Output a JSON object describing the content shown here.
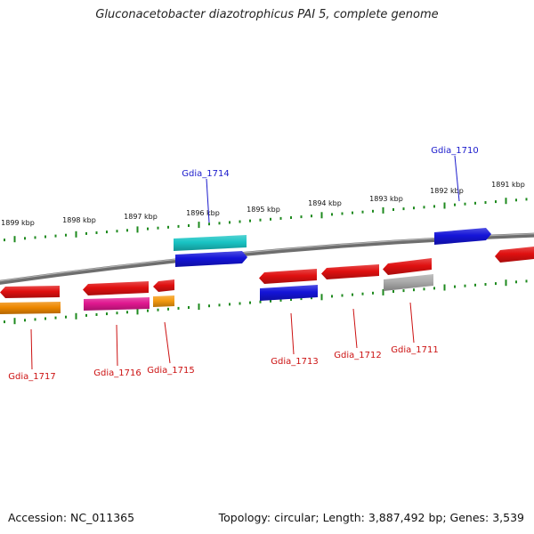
{
  "title": "Gluconacetobacter diazotrophicus PAI 5, complete genome",
  "footer": {
    "accession": "Accession: NC_011365",
    "summary": "Topology: circular; Length: 3,887,492 bp; Genes: 3,539"
  },
  "colors": {
    "backbone": "#7a7a7a",
    "ticks": "#1e8a1e",
    "label_top": "#1a1acc",
    "label_bottom": "#cc1111"
  },
  "ticks": [
    {
      "label": "1899 kbp"
    },
    {
      "label": "1898 kbp"
    },
    {
      "label": "1897 kbp"
    },
    {
      "label": "1896 kbp"
    },
    {
      "label": "1895 kbp"
    },
    {
      "label": "1894 kbp"
    },
    {
      "label": "1893 kbp"
    },
    {
      "label": "1892 kbp"
    },
    {
      "label": "1891 kbp"
    }
  ],
  "gene_labels": [
    {
      "label": "Gdia_1714",
      "strand": "plus"
    },
    {
      "label": "Gdia_1710",
      "strand": "plus"
    },
    {
      "label": "Gdia_1717",
      "strand": "minus"
    },
    {
      "label": "Gdia_1716",
      "strand": "minus"
    },
    {
      "label": "Gdia_1715",
      "strand": "minus"
    },
    {
      "label": "Gdia_1713",
      "strand": "minus"
    },
    {
      "label": "Gdia_1712",
      "strand": "minus"
    },
    {
      "label": "Gdia_1711",
      "strand": "minus"
    }
  ]
}
